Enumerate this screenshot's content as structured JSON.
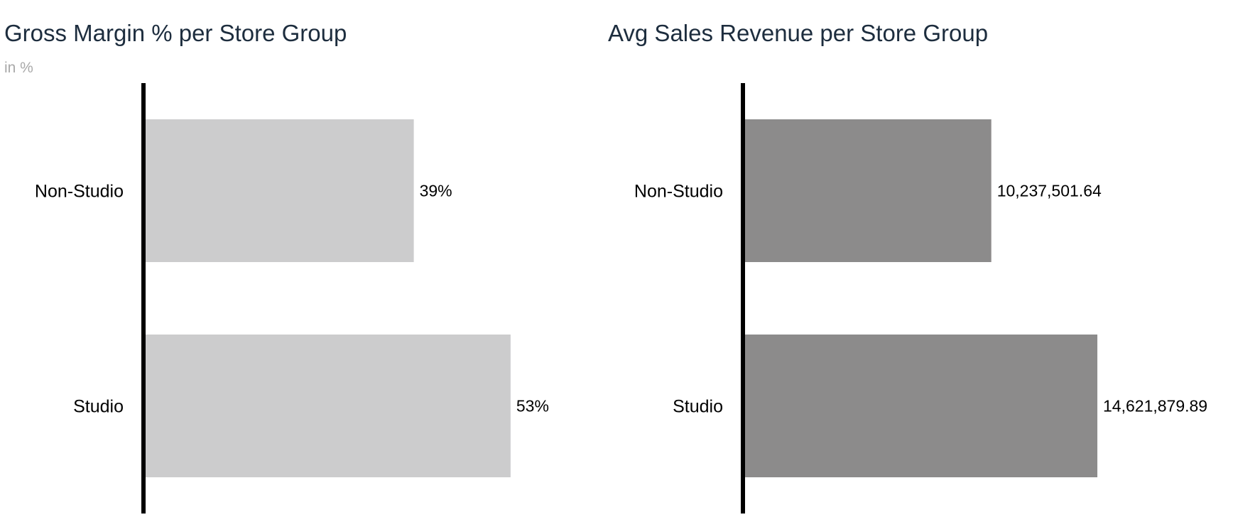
{
  "chart_data": [
    {
      "type": "bar",
      "orientation": "horizontal",
      "title": "Gross Margin % per Store Group",
      "subtitle": "in %",
      "categories": [
        "Non-Studio",
        "Studio"
      ],
      "values": [
        39,
        53
      ],
      "data_labels": [
        "39%",
        "53%"
      ],
      "xlim": [
        0,
        60
      ],
      "grid": false,
      "bar_color": "#cccccd"
    },
    {
      "type": "bar",
      "orientation": "horizontal",
      "title": "Avg Sales Revenue per Store Group",
      "categories": [
        "Non-Studio",
        "Studio"
      ],
      "values": [
        10237501.64,
        14621879.89
      ],
      "data_labels": [
        "10,237,501.64",
        "14,621,879.89"
      ],
      "xlim": [
        0,
        16500000
      ],
      "grid": false,
      "bar_color": "#8c8b8b"
    }
  ]
}
